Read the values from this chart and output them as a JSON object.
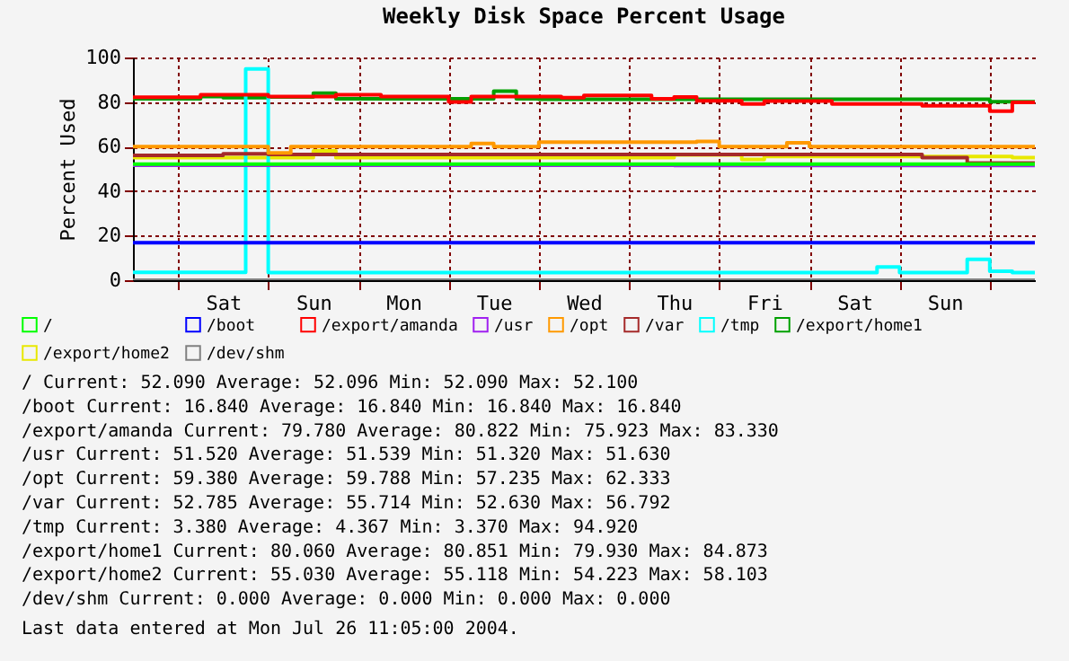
{
  "chart_data": {
    "type": "step",
    "title": "Weekly Disk Space Percent Usage",
    "ylabel": "Percent Used",
    "categories": [
      null,
      null,
      null,
      null,
      "Sat",
      null,
      null,
      null,
      "Sun",
      null,
      null,
      null,
      "Mon",
      null,
      null,
      null,
      "Tue",
      null,
      null,
      null,
      "Wed",
      null,
      null,
      null,
      "Thu",
      null,
      null,
      null,
      "Fri",
      null,
      null,
      null,
      "Sat",
      null,
      null,
      null,
      "Sun",
      null,
      null,
      null,
      null
    ],
    "ylim": [
      0,
      100
    ],
    "yticks": [
      0,
      20,
      40,
      60,
      80,
      100
    ],
    "grid": true,
    "legend": "bottom",
    "marker": "none",
    "line_style": "solid",
    "series": [
      {
        "name": "/",
        "color": "#00ff00",
        "values": [
          52.1,
          52.1,
          52.1,
          52.1,
          52.1,
          52.1,
          52.1,
          52.1,
          52.1,
          52.1,
          52.1,
          52.1,
          52.1,
          52.1,
          52.1,
          52.1,
          52.1,
          52.1,
          52.1,
          52.1,
          52.1,
          52.1,
          52.1,
          52.1,
          52.1,
          52.1,
          52.1,
          52.1,
          52.1,
          52.1,
          52.1,
          52.1,
          52.1,
          52.1,
          52.1,
          52.1,
          52.1,
          52.1,
          52.1,
          52.1,
          52.1
        ]
      },
      {
        "name": "/boot",
        "color": "#0000ff",
        "values": [
          16.8,
          16.8,
          16.8,
          16.8,
          16.8,
          16.8,
          16.8,
          16.8,
          16.8,
          16.8,
          16.8,
          16.8,
          16.8,
          16.8,
          16.8,
          16.8,
          16.8,
          16.8,
          16.8,
          16.8,
          16.8,
          16.8,
          16.8,
          16.8,
          16.8,
          16.8,
          16.8,
          16.8,
          16.8,
          16.8,
          16.8,
          16.8,
          16.8,
          16.8,
          16.8,
          16.8,
          16.8,
          16.8,
          16.8,
          16.8,
          16.8
        ]
      },
      {
        "name": "/export/amanda",
        "color": "#ff0000",
        "values": [
          82.2,
          82.2,
          82.2,
          83.3,
          83.3,
          83.3,
          82.5,
          82.5,
          82.5,
          83.3,
          83.3,
          82.5,
          82.5,
          82.5,
          80.0,
          82.5,
          82.5,
          82.5,
          82.5,
          82.0,
          83.0,
          83.0,
          83.0,
          81.5,
          82.3,
          80.5,
          80.5,
          79.1,
          80.4,
          80.4,
          80.4,
          79.1,
          79.1,
          79.1,
          79.1,
          78.3,
          78.3,
          78.3,
          75.9,
          79.8,
          79.8
        ]
      },
      {
        "name": "/usr",
        "color": "#a020f0",
        "values": [
          51.6,
          51.6,
          51.6,
          51.6,
          51.6,
          51.6,
          51.6,
          51.6,
          51.6,
          51.6,
          51.6,
          51.6,
          51.6,
          51.6,
          51.6,
          51.6,
          51.6,
          51.6,
          51.6,
          51.6,
          51.6,
          51.6,
          51.6,
          51.6,
          51.5,
          51.5,
          51.5,
          51.5,
          51.5,
          51.5,
          51.5,
          51.5,
          51.5,
          51.5,
          51.5,
          51.5,
          51.5,
          51.5,
          51.5,
          51.5,
          51.5
        ]
      },
      {
        "name": "/opt",
        "color": "#ff9900",
        "values": [
          60.0,
          60.0,
          60.0,
          60.0,
          60.0,
          60.0,
          57.2,
          60.0,
          60.0,
          60.0,
          60.0,
          60.0,
          60.0,
          60.0,
          60.0,
          61.4,
          60.0,
          60.0,
          62.0,
          62.0,
          62.0,
          62.0,
          62.0,
          62.0,
          62.0,
          62.3,
          60.0,
          60.0,
          60.0,
          61.7,
          60.0,
          60.0,
          60.0,
          60.0,
          60.0,
          60.0,
          60.0,
          60.0,
          60.0,
          60.0,
          59.4
        ]
      },
      {
        "name": "/var",
        "color": "#a52a2a",
        "values": [
          56.0,
          56.0,
          56.0,
          56.0,
          56.8,
          56.8,
          56.5,
          56.5,
          56.5,
          56.5,
          56.5,
          56.5,
          56.5,
          56.5,
          56.5,
          56.5,
          56.5,
          56.5,
          56.5,
          56.5,
          56.5,
          56.5,
          56.5,
          56.5,
          56.5,
          56.5,
          56.5,
          56.5,
          56.5,
          56.5,
          56.5,
          56.5,
          56.5,
          56.5,
          56.5,
          55.0,
          55.0,
          52.6,
          52.6,
          52.6,
          52.8
        ]
      },
      {
        "name": "/tmp",
        "color": "#00ffff",
        "values": [
          3.5,
          3.5,
          3.5,
          3.5,
          3.5,
          94.9,
          3.4,
          3.4,
          3.4,
          3.4,
          3.4,
          3.4,
          3.4,
          3.4,
          3.4,
          3.4,
          3.4,
          3.4,
          3.4,
          3.4,
          3.4,
          3.4,
          3.4,
          3.4,
          3.4,
          3.4,
          3.4,
          3.4,
          3.4,
          3.4,
          3.4,
          3.4,
          3.4,
          5.9,
          3.4,
          3.4,
          3.4,
          9.4,
          4.0,
          3.4,
          3.4
        ]
      },
      {
        "name": "/export/home1",
        "color": "#00a000",
        "values": [
          81.5,
          81.5,
          81.5,
          82.5,
          82.0,
          82.0,
          82.3,
          82.3,
          84.0,
          81.5,
          81.5,
          81.5,
          81.5,
          81.5,
          81.5,
          81.5,
          84.9,
          81.5,
          81.2,
          81.2,
          81.2,
          81.2,
          81.2,
          81.2,
          81.2,
          81.2,
          81.2,
          81.2,
          81.2,
          81.2,
          81.2,
          81.2,
          81.2,
          81.2,
          81.2,
          81.2,
          81.2,
          81.2,
          80.1,
          80.1,
          80.1
        ]
      },
      {
        "name": "/export/home2",
        "color": "#e8e800",
        "values": [
          55.0,
          55.0,
          55.0,
          55.0,
          55.0,
          55.0,
          55.0,
          55.0,
          58.1,
          55.0,
          55.0,
          55.0,
          55.0,
          55.0,
          55.0,
          55.0,
          55.0,
          55.0,
          55.0,
          55.0,
          55.0,
          55.0,
          55.0,
          55.0,
          56.3,
          56.3,
          56.3,
          54.2,
          55.5,
          55.5,
          55.5,
          55.5,
          55.5,
          55.5,
          55.5,
          55.5,
          55.5,
          55.5,
          55.5,
          55.0,
          55.0
        ]
      },
      {
        "name": "/dev/shm",
        "color": "#808080",
        "values": [
          0,
          0,
          0,
          0,
          0,
          0,
          0,
          0,
          0,
          0,
          0,
          0,
          0,
          0,
          0,
          0,
          0,
          0,
          0,
          0,
          0,
          0,
          0,
          0,
          0,
          0,
          0,
          0,
          0,
          0,
          0,
          0,
          0,
          0,
          0,
          0,
          0,
          0,
          0,
          0,
          0
        ]
      }
    ],
    "annotations": [
      "/ Current: 52.090 Average: 52.096 Min: 52.090 Max: 52.100",
      "/boot Current: 16.840 Average: 16.840 Min: 16.840 Max: 16.840",
      "/export/amanda Current: 79.780 Average: 80.822 Min: 75.923 Max: 83.330",
      "/usr Current: 51.520 Average: 51.539 Min: 51.320 Max: 51.630",
      "/opt Current: 59.380 Average: 59.788 Min: 57.235 Max: 62.333",
      "/var Current: 52.785 Average: 55.714 Min: 52.630 Max: 56.792",
      "/tmp Current: 3.380 Average: 4.367 Min: 3.370 Max: 94.920",
      "/export/home1 Current: 80.060 Average: 80.851 Min: 79.930 Max: 84.873",
      "/export/home2 Current: 55.030 Average: 55.118 Min: 54.223 Max: 58.103",
      "/dev/shm Current: 0.000 Average: 0.000 Min: 0.000 Max: 0.000",
      "Last data entered at Mon Jul 26 11:05:00 2004."
    ]
  }
}
